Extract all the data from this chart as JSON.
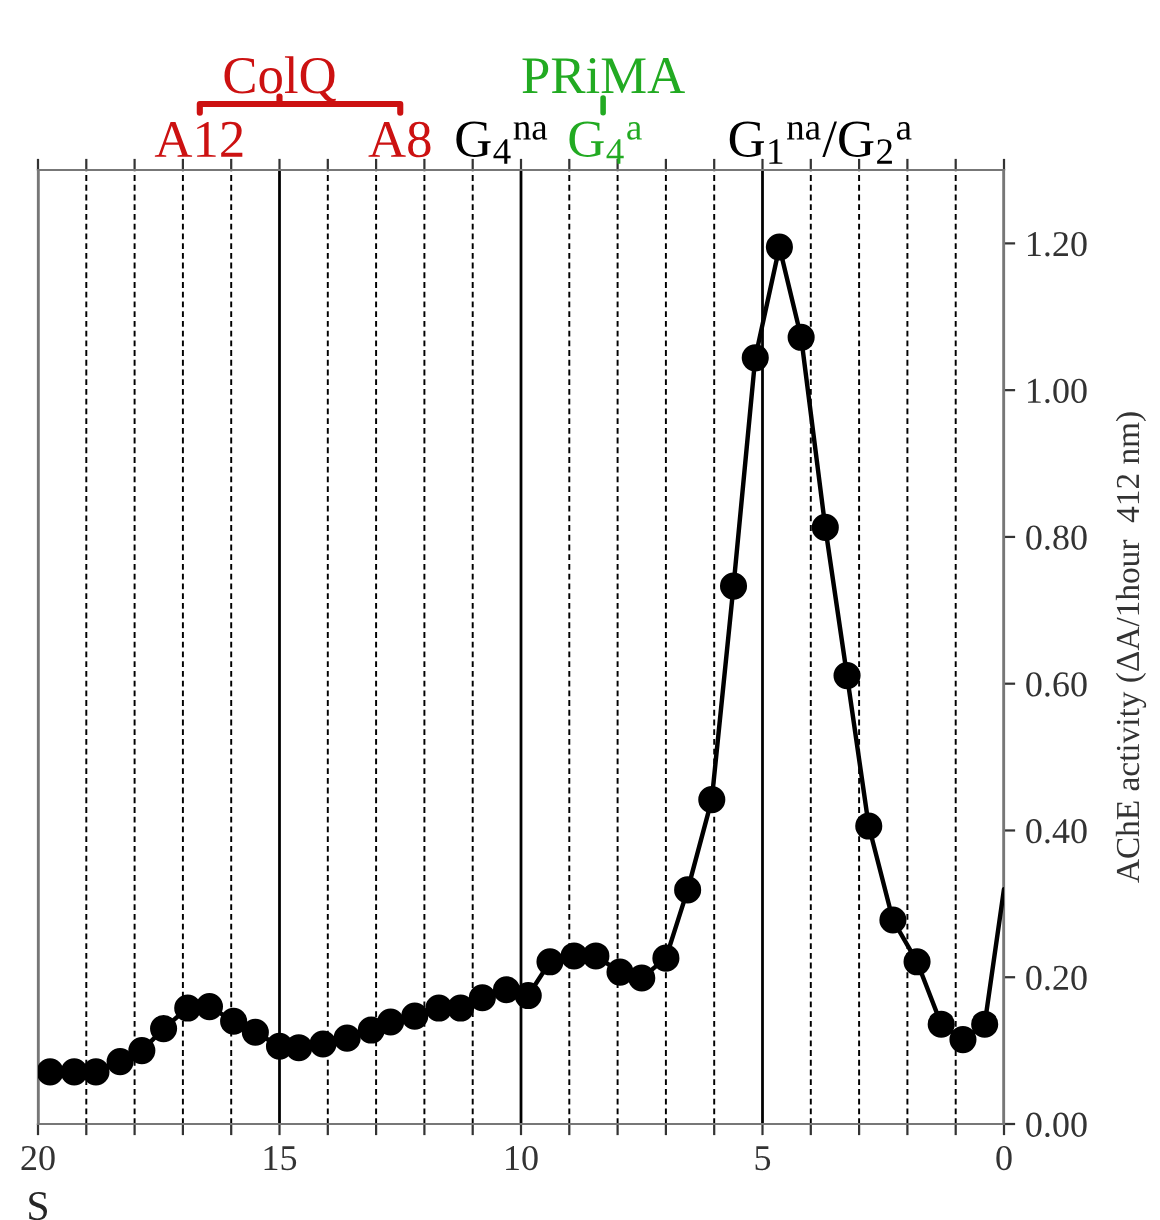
{
  "chart_data": {
    "type": "line",
    "xlabel": "S",
    "ylabel": "AChE activity (ΔA/1hour  412 nm)",
    "xlim": [
      20,
      0
    ],
    "ylim": [
      0,
      1.3
    ],
    "xticks": [
      20,
      {
        "value": 19,
        "label": null
      },
      {
        "value": 18,
        "label": null
      },
      {
        "value": 17,
        "label": null
      },
      {
        "value": 16,
        "label": null
      },
      15,
      {
        "value": 14,
        "label": null
      },
      {
        "value": 13,
        "label": null
      },
      {
        "value": 12,
        "label": null
      },
      {
        "value": 11,
        "label": null
      },
      10,
      {
        "value": 9,
        "label": null
      },
      {
        "value": 8,
        "label": null
      },
      {
        "value": 7,
        "label": null
      },
      {
        "value": 6,
        "label": null
      },
      5,
      {
        "value": 4,
        "label": null
      },
      {
        "value": 3,
        "label": null
      },
      {
        "value": 2,
        "label": null
      },
      {
        "value": 1,
        "label": null
      },
      0
    ],
    "yticks": [
      {
        "value": 0,
        "label": "0.00"
      },
      {
        "value": 0.2,
        "label": "0.20"
      },
      {
        "value": 0.4,
        "label": "0.40"
      },
      {
        "value": 0.6,
        "label": "0.60"
      },
      {
        "value": 0.8,
        "label": "0.80"
      },
      {
        "value": 1.0,
        "label": "1.00"
      },
      {
        "value": 1.2,
        "label": "1.20"
      }
    ],
    "grid": "x",
    "legend": false,
    "annotations": [
      "ColQ",
      "A12",
      "A8",
      "PRiMA",
      "G$_{4}$$^{na}$",
      "G$_{4}$$^{a}$",
      "G$_{1}$$^{na}$/G$_{2}$$^{a}$"
    ],
    "series": [
      {
        "color": "#000000",
        "marker": "circle",
        "line_style": "solid",
        "x": [
          19.75,
          19.25,
          18.8,
          18.3,
          17.85,
          17.4,
          16.9,
          16.45,
          15.95,
          15.5,
          15.0,
          14.6,
          14.1,
          13.6,
          13.1,
          12.7,
          12.2,
          11.7,
          11.25,
          10.8,
          10.3,
          9.85,
          9.4,
          8.9,
          8.45,
          7.95,
          7.5,
          7.0,
          6.55,
          6.05,
          5.6,
          5.15,
          4.65,
          4.2,
          3.7,
          3.25,
          2.8,
          2.3,
          1.8,
          1.3,
          0.85,
          0.4
        ],
        "values": [
          0.071,
          0.071,
          0.071,
          0.085,
          0.1,
          0.13,
          0.158,
          0.16,
          0.14,
          0.125,
          0.106,
          0.104,
          0.109,
          0.117,
          0.128,
          0.139,
          0.147,
          0.158,
          0.158,
          0.172,
          0.183,
          0.175,
          0.221,
          0.229,
          0.229,
          0.207,
          0.199,
          0.226,
          0.319,
          0.442,
          0.733,
          1.044,
          1.195,
          1.072,
          0.813,
          0.611,
          0.406,
          0.278,
          0.221,
          0.136,
          0.115,
          0.136
        ]
      },
      {
        "color": "#000000",
        "marker": "none",
        "line_style": "solid",
        "x": [
          0.4,
          0.0
        ],
        "values": [
          0.136,
          0.32
        ]
      }
    ]
  }
}
